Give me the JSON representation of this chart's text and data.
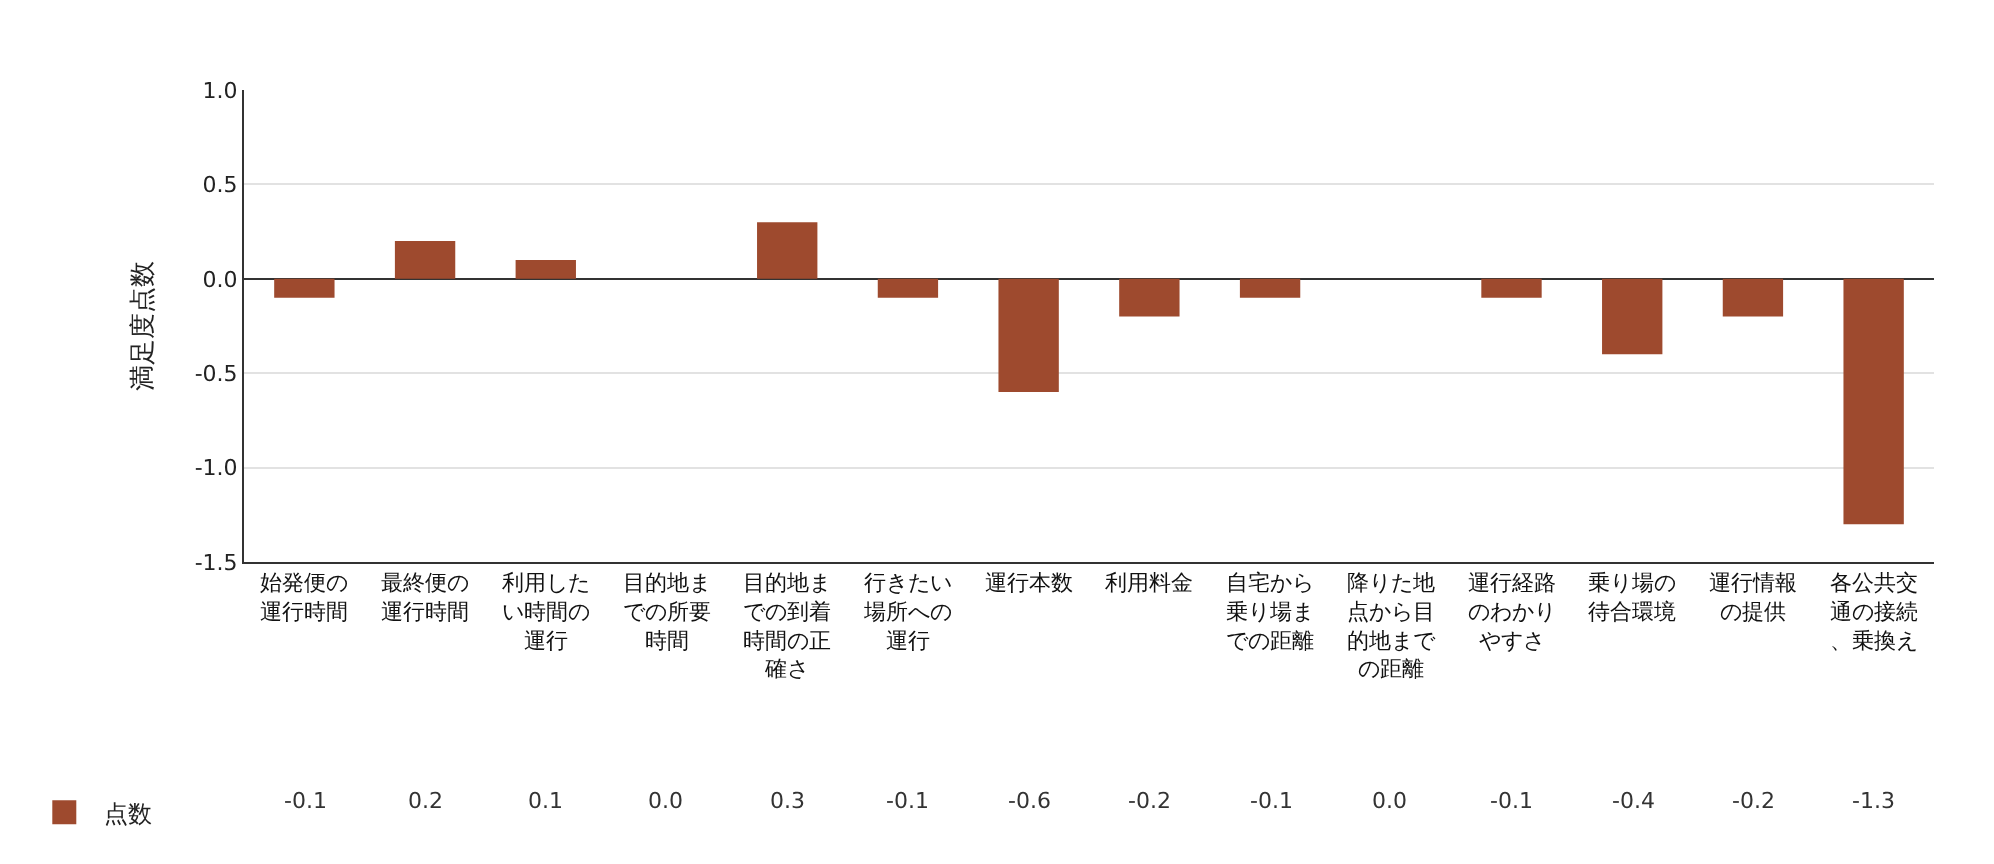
{
  "chart_data": {
    "type": "bar",
    "ylabel": "満足度点数",
    "categories": [
      "始発便の運行時間",
      "最終便の運行時間",
      "利用したい時間の運行",
      "目的地までの所要時間",
      "目的地までの到着時間の正確さ",
      "行きたい場所への運行",
      "運行本数",
      "利用料金",
      "自宅から乗り場までの距離",
      "降りた地点から目的地までの距離",
      "運行経路のわかりやすさ",
      "乗り場の待合環境",
      "運行情報の提供",
      "各公共交通の接続、乗換え"
    ],
    "series": [
      {
        "name": "点数",
        "color": "#9e4a2e",
        "values": [
          -0.1,
          0.2,
          0.1,
          0.0,
          0.3,
          -0.1,
          -0.6,
          -0.2,
          -0.1,
          0.0,
          -0.1,
          -0.4,
          -0.2,
          -1.3
        ],
        "value_labels": [
          "-0.1",
          "0.2",
          "0.1",
          "0.0",
          "0.3",
          "-0.1",
          "-0.6",
          "-0.2",
          "-0.1",
          "0.0",
          "-0.1",
          "-0.4",
          "-0.2",
          "-1.3"
        ]
      }
    ],
    "ylim": [
      -1.5,
      1.0
    ],
    "yticks": [
      {
        "value": 1.0,
        "label": "1.0"
      },
      {
        "value": 0.5,
        "label": "0.5"
      },
      {
        "value": 0,
        "label": "0.0"
      },
      {
        "value": -0.5,
        "label": "-0.5"
      },
      {
        "value": -1.0,
        "label": "-1.0"
      },
      {
        "value": -1.5,
        "label": "-1.5"
      }
    ],
    "legend": "bottom left",
    "grid": "y"
  }
}
